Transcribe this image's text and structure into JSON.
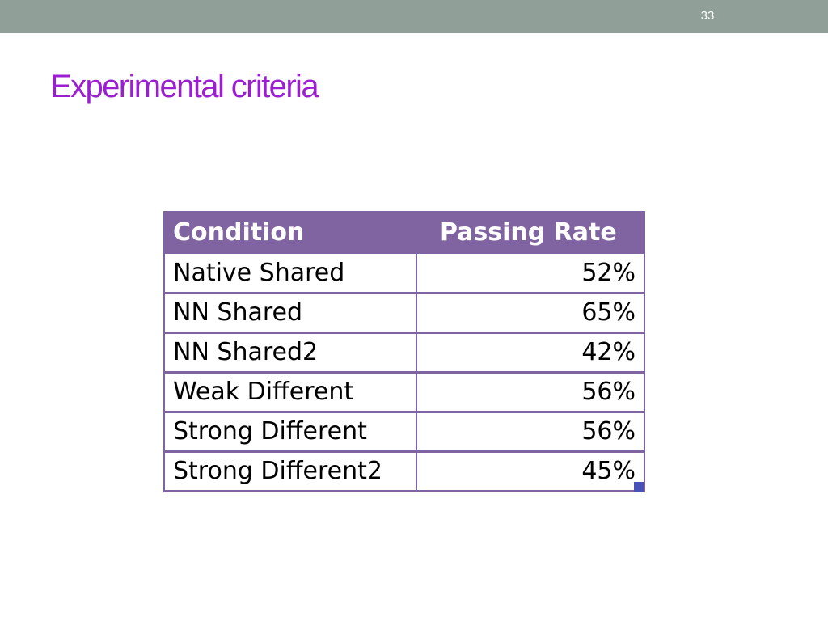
{
  "slide": {
    "page_number": "33",
    "title": "Experimental criteria"
  },
  "table": {
    "headers": {
      "condition": "Condition",
      "passing_rate": "Passing Rate"
    },
    "rows": [
      {
        "condition": "Native Shared",
        "rate": "52%"
      },
      {
        "condition": "NN Shared",
        "rate": "65%"
      },
      {
        "condition": "NN Shared2",
        "rate": "42%"
      },
      {
        "condition": "Weak Different",
        "rate": "56%"
      },
      {
        "condition": "Strong Different",
        "rate": "56%"
      },
      {
        "condition": "Strong Different2",
        "rate": "45%"
      }
    ]
  },
  "colors": {
    "top_bar": "#909f98",
    "title": "#9b1fd1",
    "table_header": "#8064a2",
    "resize_handle": "#4852b8"
  }
}
